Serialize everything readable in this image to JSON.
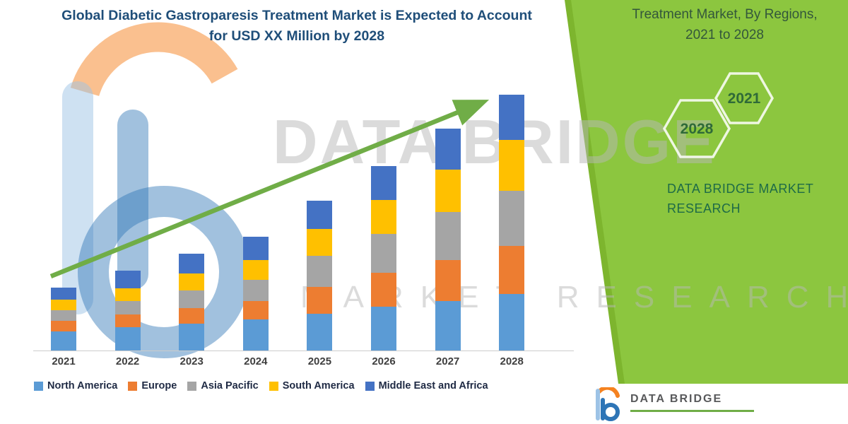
{
  "title": {
    "line1": "Global Diabetic Gastroparesis Treatment Market is Expected to Account",
    "line2": "for USD XX Million by 2028"
  },
  "side_panel": {
    "heading_line1": "Treatment Market, By Regions,",
    "heading_line2": "2021 to 2028",
    "hexagons": [
      {
        "label": "2021"
      },
      {
        "label": "2028"
      }
    ],
    "brand_line1": "DATA BRIDGE MARKET",
    "brand_line2": "RESEARCH",
    "bg_color": "#8CC63F",
    "edge_color": "#7DB52E",
    "heading_color": "#33573B",
    "brand_color": "#1E6B47"
  },
  "watermark": {
    "big_text": "DATA BRIDGE",
    "sub_text": "MARKET RESEARCH"
  },
  "footer_logo": {
    "name": "DATA BRIDGE",
    "underline_color": "#70AD47"
  },
  "legend": [
    {
      "label": "North America",
      "color": "#5B9BD5"
    },
    {
      "label": "Europe",
      "color": "#ED7D31"
    },
    {
      "label": "Asia Pacific",
      "color": "#A5A5A5"
    },
    {
      "label": "South America",
      "color": "#FFC000"
    },
    {
      "label": "Middle East and Africa",
      "color": "#4472C4"
    }
  ],
  "chart_data": {
    "type": "bar",
    "stacked": true,
    "title": "Global Diabetic Gastroparesis Treatment Market is Expected to Account for USD XX Million by 2028",
    "xlabel": "",
    "ylabel": "",
    "units": "relative index (actual values undisclosed, shown as USD XX Million)",
    "categories": [
      "2021",
      "2022",
      "2023",
      "2024",
      "2025",
      "2026",
      "2027",
      "2028"
    ],
    "series": [
      {
        "name": "North America",
        "color": "#5B9BD5",
        "values": [
          27,
          33,
          38,
          44,
          52,
          62,
          70,
          80
        ]
      },
      {
        "name": "Europe",
        "color": "#ED7D31",
        "values": [
          15,
          18,
          22,
          26,
          38,
          48,
          58,
          68
        ]
      },
      {
        "name": "Asia Pacific",
        "color": "#A5A5A5",
        "values": [
          15,
          19,
          25,
          30,
          44,
          55,
          68,
          78
        ]
      },
      {
        "name": "South America",
        "color": "#FFC000",
        "values": [
          15,
          18,
          24,
          28,
          38,
          48,
          60,
          72
        ]
      },
      {
        "name": "Middle East and Africa",
        "color": "#4472C4",
        "values": [
          17,
          25,
          28,
          33,
          40,
          48,
          58,
          64
        ]
      }
    ],
    "totals": [
      89,
      113,
      137,
      161,
      212,
      261,
      314,
      362
    ],
    "ylim": [
      0,
      400
    ],
    "grid": false,
    "legend_position": "bottom",
    "trend_arrow": true,
    "trend_arrow_color": "#70AD47"
  }
}
